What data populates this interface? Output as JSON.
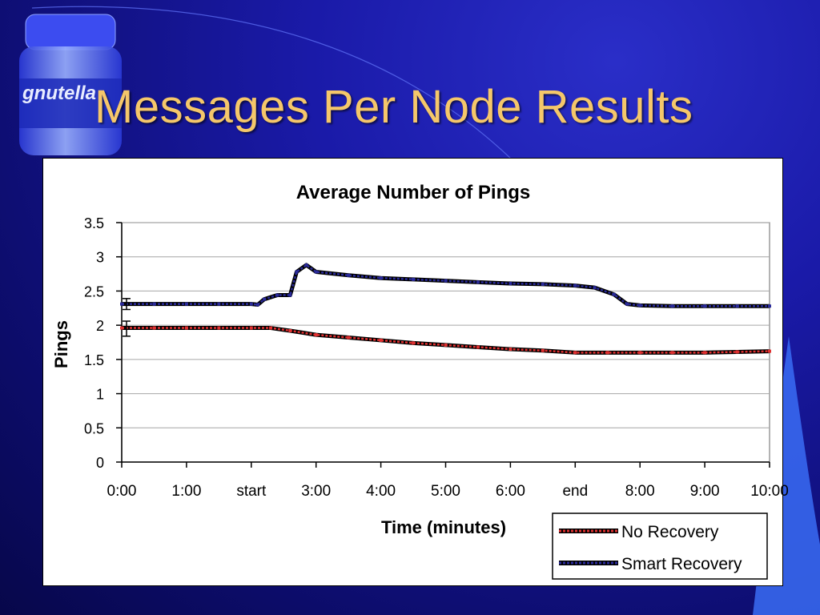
{
  "slide": {
    "title": "Messages Per Node Results",
    "logo_text": "gnutella",
    "logo_icon": "gnutella-jar-icon"
  },
  "colors": {
    "title": "#f5c76a",
    "background": "#1a1aa8",
    "no_recovery": "#e03030",
    "smart_recovery": "#2a2a9a"
  },
  "chart_data": {
    "type": "line",
    "title": "Average Number of Pings",
    "xlabel": "Time (minutes)",
    "ylabel": "Pings",
    "ylim": [
      0,
      3.5
    ],
    "yticks": [
      "0",
      "0.5",
      "1",
      "1.5",
      "2",
      "2.5",
      "3",
      "3.5"
    ],
    "xticks": [
      "0:00",
      "1:00",
      "start",
      "3:00",
      "4:00",
      "5:00",
      "6:00",
      "end",
      "8:00",
      "9:00",
      "10:00"
    ],
    "xlim": [
      0,
      10
    ],
    "grid": true,
    "legend": "bottom-right",
    "series": [
      {
        "name": "No Recovery",
        "x": [
          0,
          0.5,
          1,
          1.5,
          2,
          2.3,
          2.6,
          3,
          3.5,
          4,
          4.5,
          5,
          5.5,
          6,
          6.5,
          7,
          7.5,
          8,
          8.5,
          9,
          9.5,
          10
        ],
        "y": [
          1.96,
          1.96,
          1.96,
          1.96,
          1.96,
          1.96,
          1.92,
          1.86,
          1.82,
          1.78,
          1.74,
          1.71,
          1.68,
          1.65,
          1.63,
          1.6,
          1.6,
          1.6,
          1.6,
          1.6,
          1.61,
          1.62
        ]
      },
      {
        "name": "Smart Recovery",
        "x": [
          0,
          0.5,
          1,
          1.5,
          2,
          2.1,
          2.2,
          2.4,
          2.6,
          2.7,
          2.85,
          3,
          3.5,
          4,
          4.5,
          5,
          5.5,
          6,
          6.5,
          7,
          7.3,
          7.6,
          7.8,
          8,
          8.5,
          9,
          9.5,
          10
        ],
        "y": [
          2.31,
          2.31,
          2.31,
          2.31,
          2.31,
          2.3,
          2.38,
          2.44,
          2.44,
          2.78,
          2.88,
          2.78,
          2.73,
          2.69,
          2.67,
          2.65,
          2.63,
          2.61,
          2.6,
          2.58,
          2.55,
          2.45,
          2.31,
          2.29,
          2.28,
          2.28,
          2.28,
          2.28
        ]
      }
    ],
    "error_bars": [
      {
        "series": "No Recovery",
        "x": 0,
        "low": 1.84,
        "high": 2.06
      },
      {
        "series": "Smart Recovery",
        "x": 0,
        "low": 2.23,
        "high": 2.39
      }
    ]
  }
}
